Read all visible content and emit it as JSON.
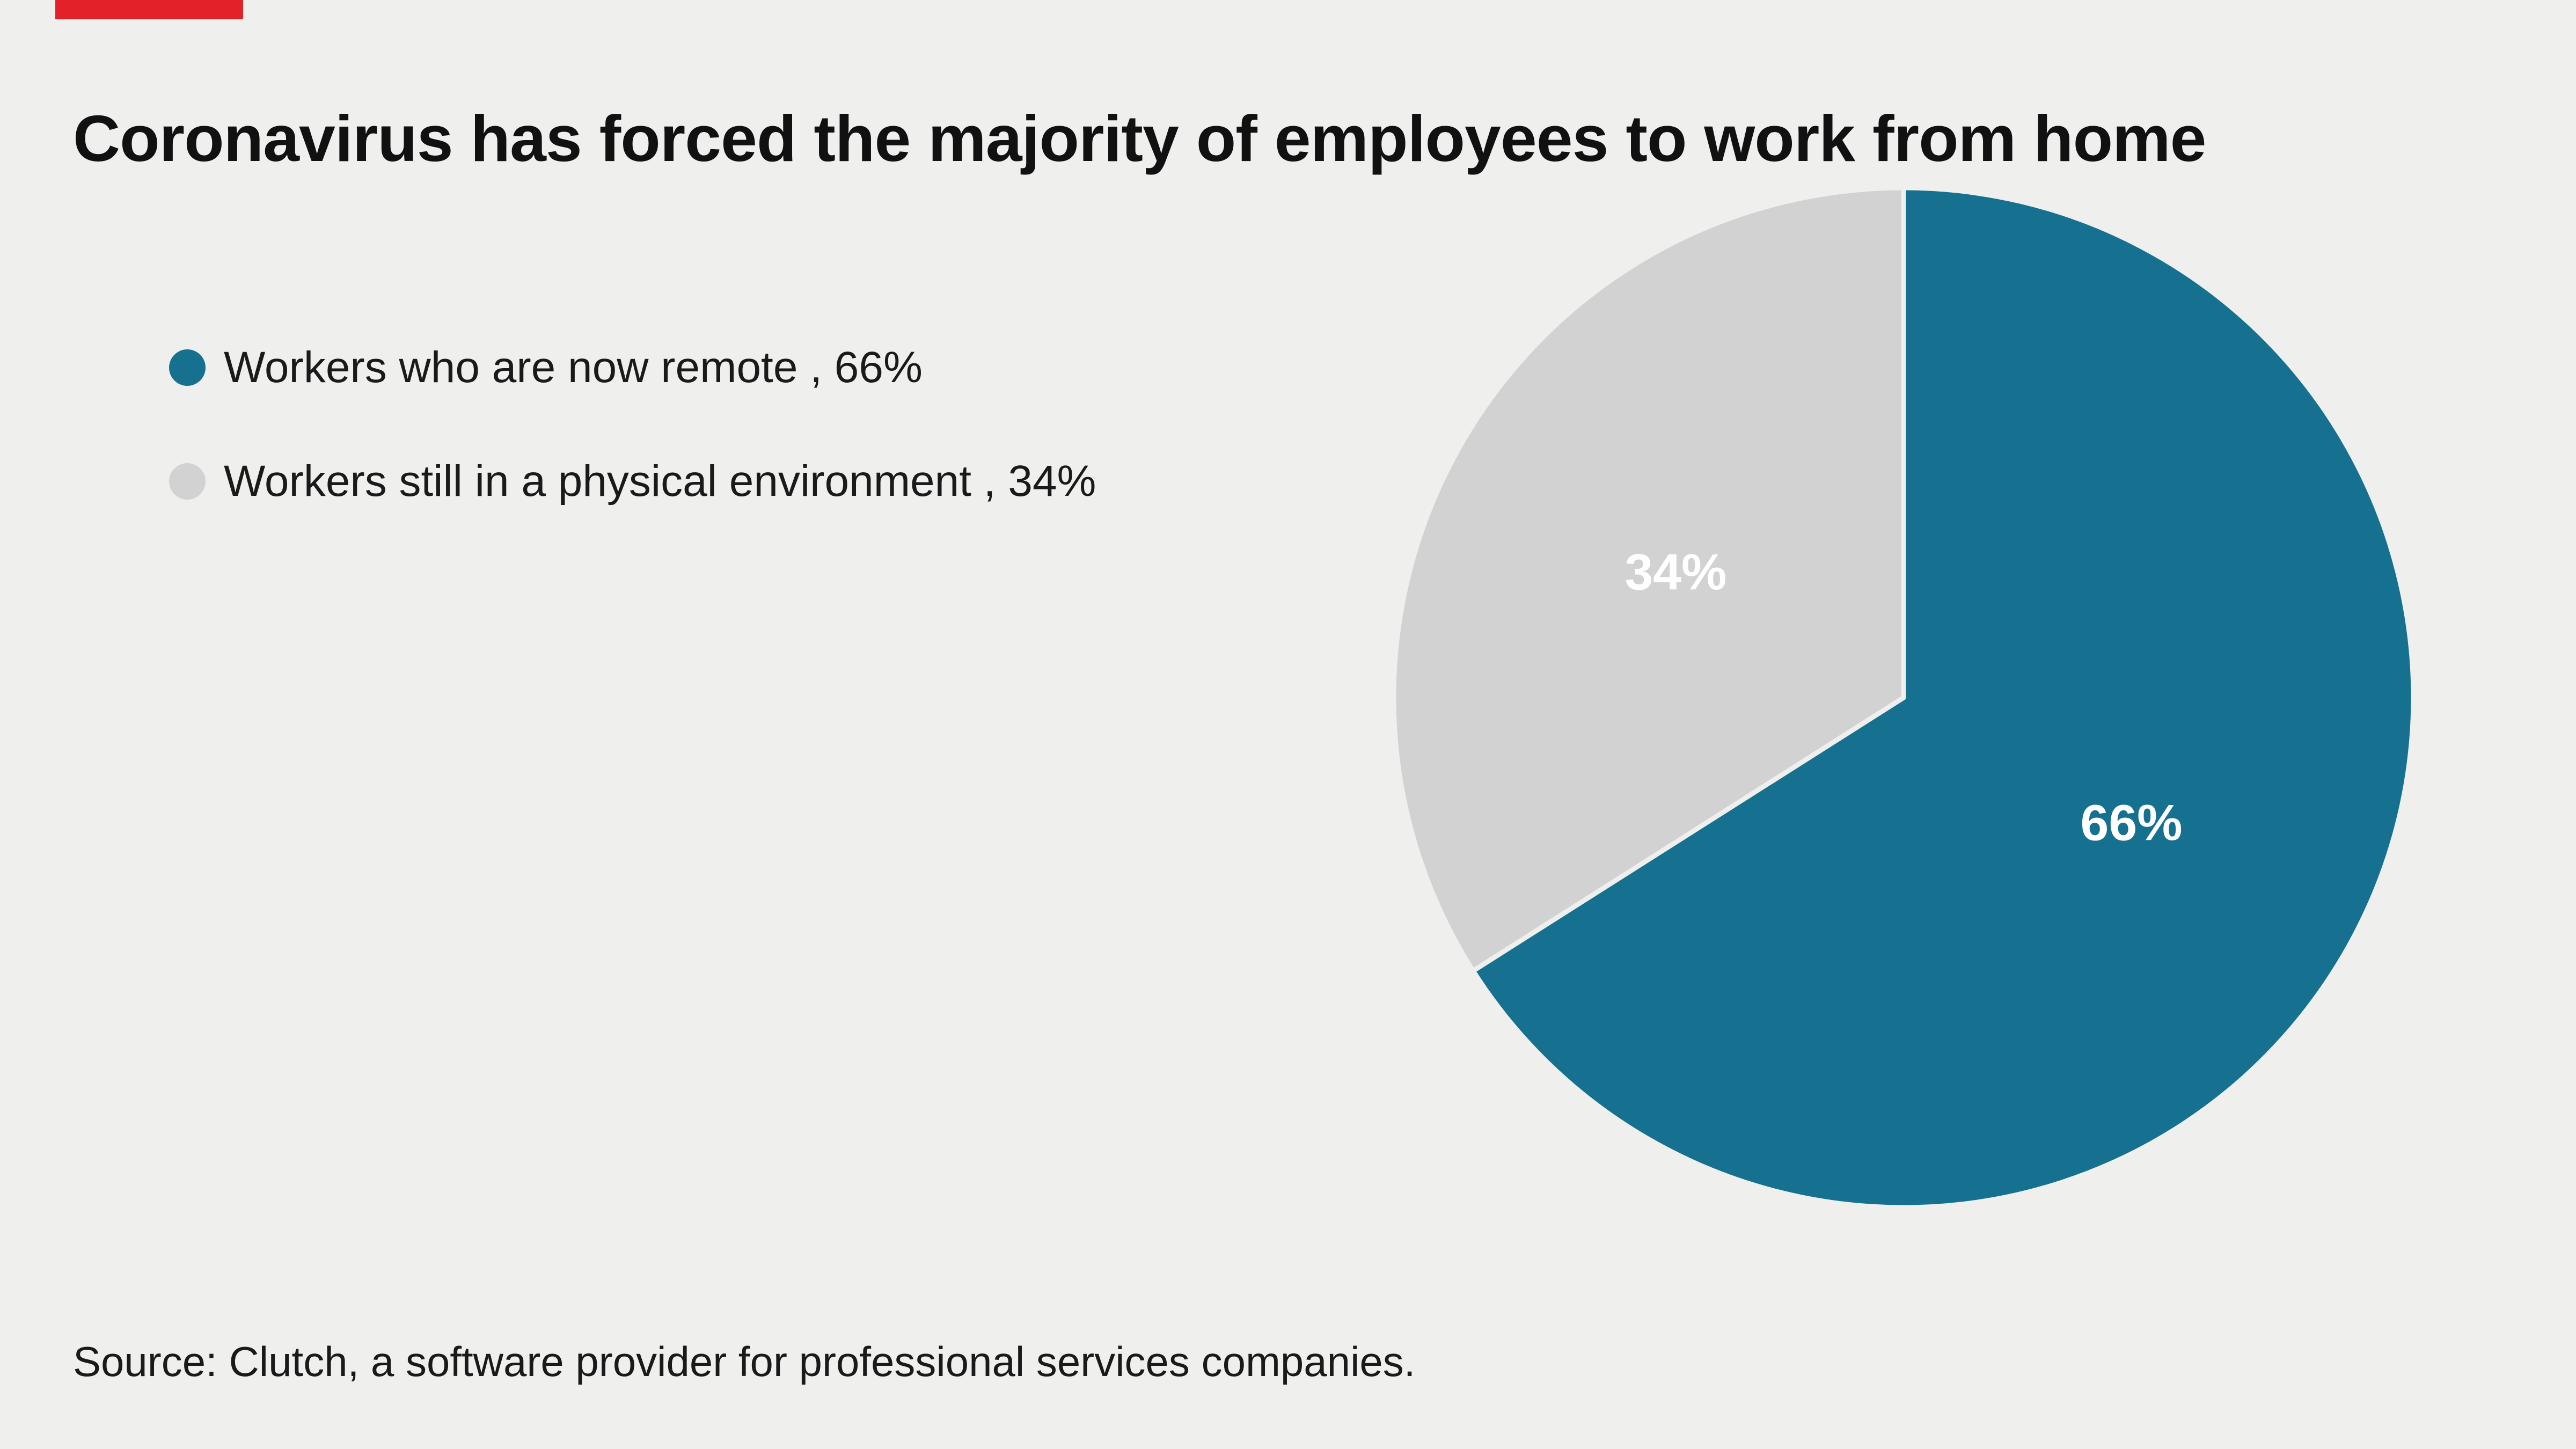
{
  "brand": {
    "accent_color": "#e32129"
  },
  "header": {
    "title": "Coronavirus has forced the majority of employees to work from home"
  },
  "legend": {
    "items": [
      {
        "label": "Workers who are now remote , 66%",
        "color": "#15718f"
      },
      {
        "label": "Workers still in a physical environment , 34%",
        "color": "#d2d2d2"
      }
    ]
  },
  "source": "Source: Clutch, a software provider for professional services companies.",
  "chart_data": {
    "type": "pie",
    "title": "Coronavirus has forced the majority of employees to work from home",
    "start_angle_deg": -90,
    "direction": "clockwise",
    "legend_position": "left",
    "slices": [
      {
        "label": "Workers who are now remote",
        "value": 66,
        "data_label": "66%",
        "color": "#15718f"
      },
      {
        "label": "Workers still in a physical environment",
        "value": 34,
        "data_label": "34%",
        "color": "#d2d2d2"
      }
    ]
  }
}
